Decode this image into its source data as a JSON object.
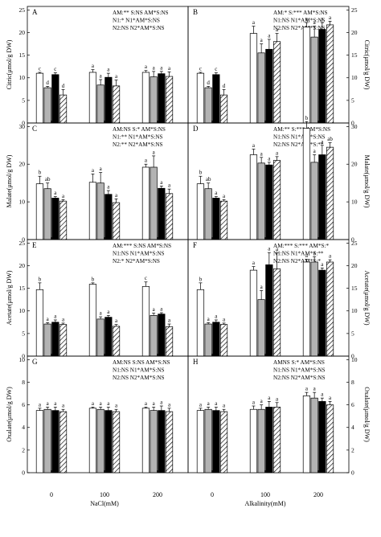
{
  "figure": {
    "xaxis_left_title": "NaCl(mM)",
    "xaxis_right_title": "Alkalinity(mM)",
    "group_labels": [
      "0",
      "100",
      "200"
    ]
  },
  "chart_data": [
    {
      "type": "bar",
      "panel": "A",
      "ylabel": "Citric(μmol/g DW)",
      "ylim": [
        0,
        25
      ],
      "yticks": [
        "0",
        "5",
        "10",
        "15",
        "20",
        "25"
      ],
      "categories": [
        "0",
        "100",
        "200"
      ],
      "series": [
        {
          "values": [
            11.0,
            11.2,
            11.2
          ],
          "errors": [
            0.2,
            0.6,
            0.4
          ]
        },
        {
          "values": [
            7.8,
            8.4,
            10.2
          ],
          "errors": [
            0.3,
            1.2,
            1.2
          ]
        },
        {
          "values": [
            10.7,
            10.1,
            10.9
          ],
          "errors": [
            0.4,
            0.9,
            0.5
          ]
        },
        {
          "values": [
            6.2,
            8.2,
            10.3
          ],
          "errors": [
            1.2,
            1.3,
            1.0
          ]
        }
      ],
      "letters": [
        [
          "c",
          "d",
          "c",
          "d"
        ],
        [
          "a",
          "a",
          "a",
          "a"
        ],
        [
          "a",
          "a",
          "a",
          "a"
        ]
      ],
      "stats": [
        "AM:**  S:NS      AM*S:NS",
        "N1:*       N1*AM*S:NS",
        "N2:NS     N2*AM*S:NS"
      ]
    },
    {
      "type": "bar",
      "panel": "B",
      "ylabel": "Citric(μmol/g DW)",
      "ylim": [
        0,
        25
      ],
      "yticks": [
        "0",
        "5",
        "10",
        "15",
        "20",
        "25"
      ],
      "categories": [
        "0",
        "100",
        "200"
      ],
      "series": [
        {
          "values": [
            11.0,
            19.8,
            21.2
          ],
          "errors": [
            0.2,
            1.6,
            1.0
          ]
        },
        {
          "values": [
            7.8,
            15.5,
            19.0
          ],
          "errors": [
            0.3,
            2.0,
            2.4
          ]
        },
        {
          "values": [
            10.7,
            16.3,
            20.7
          ],
          "errors": [
            0.4,
            2.2,
            1.5
          ]
        },
        {
          "values": [
            6.2,
            18.0,
            21.7
          ],
          "errors": [
            1.2,
            1.8,
            0.8
          ]
        }
      ],
      "letters": [
        [
          "c",
          "d",
          "c",
          "d"
        ],
        [
          "a",
          "a",
          "a",
          "a"
        ],
        [
          "a",
          "a",
          "a",
          "a"
        ]
      ],
      "stats": [
        "AM:*    S:***  AM*S:NS",
        "N1:NS   N1*AM*S:NS",
        "N2:NS   N2*AM*S:NS"
      ]
    },
    {
      "type": "bar",
      "panel": "C",
      "ylabel": "Malate(μmol/g DW)",
      "ylim": [
        0,
        30
      ],
      "yticks": [
        "0",
        "10",
        "20",
        "30"
      ],
      "categories": [
        "0",
        "100",
        "200"
      ],
      "series": [
        {
          "values": [
            14.8,
            15.2,
            19.2
          ],
          "errors": [
            2.0,
            2.2,
            0.8
          ]
        },
        {
          "values": [
            13.5,
            15.0,
            19.2
          ],
          "errors": [
            1.5,
            2.8,
            3.0
          ]
        },
        {
          "values": [
            11.0,
            12.0,
            13.6
          ],
          "errors": [
            0.4,
            1.0,
            0.6
          ]
        },
        {
          "values": [
            10.2,
            9.8,
            12.2
          ],
          "errors": [
            0.4,
            1.0,
            1.2
          ]
        }
      ],
      "letters": [
        [
          "b",
          "ab",
          "a",
          "a"
        ],
        [
          "a",
          "a",
          "a",
          "a"
        ],
        [
          "a",
          "a",
          "a",
          "a"
        ]
      ],
      "stats": [
        "AM:NS  S:*     AM*S:NS",
        "N1:**       N1*AM*S:NS",
        "N2:**       N2*AM*S:NS"
      ]
    },
    {
      "type": "bar",
      "panel": "D",
      "ylabel": "Malate(μmol/g DW)",
      "ylim": [
        0,
        30
      ],
      "yticks": [
        "0",
        "10",
        "20",
        "30"
      ],
      "categories": [
        "0",
        "100",
        "200"
      ],
      "series": [
        {
          "values": [
            14.8,
            22.5,
            29.5
          ],
          "errors": [
            2.0,
            1.5,
            1.8
          ]
        },
        {
          "values": [
            13.5,
            20.3,
            20.5
          ],
          "errors": [
            1.5,
            1.5,
            2.0
          ]
        },
        {
          "values": [
            11.0,
            19.8,
            22.5
          ],
          "errors": [
            0.4,
            0.7,
            2.5
          ]
        },
        {
          "values": [
            10.2,
            21.0,
            24.5
          ],
          "errors": [
            0.4,
            1.0,
            1.2
          ]
        }
      ],
      "letters": [
        [
          "b",
          "ab",
          "a",
          "a"
        ],
        [
          "a",
          "a",
          "a",
          "a"
        ],
        [
          "b",
          "a",
          "a",
          "ab"
        ]
      ],
      "stats": [
        "AM:**    S:***   AM*S:NS",
        "N1:NS     N1*AM*S:NS",
        "N2:NS     N2*AM*S:**"
      ]
    },
    {
      "type": "bar",
      "panel": "E",
      "ylabel": "Acetate(μmol/g DW)",
      "ylim": [
        0,
        25
      ],
      "yticks": [
        "0",
        "5",
        "10",
        "15",
        "20",
        "25"
      ],
      "categories": [
        "0",
        "100",
        "200"
      ],
      "series": [
        {
          "values": [
            14.7,
            15.9,
            15.4
          ],
          "errors": [
            1.5,
            0.3,
            1.0
          ]
        },
        {
          "values": [
            7.1,
            8.2,
            9.0
          ],
          "errors": [
            0.3,
            0.5,
            0.5
          ]
        },
        {
          "values": [
            7.5,
            8.6,
            9.3
          ],
          "errors": [
            0.5,
            0.4,
            0.3
          ]
        },
        {
          "values": [
            7.0,
            6.6,
            6.5
          ],
          "errors": [
            0.3,
            0.4,
            0.6
          ]
        }
      ],
      "letters": [
        [
          "b",
          "a",
          "a",
          "a"
        ],
        [
          "b",
          "a",
          "a",
          "a"
        ],
        [
          "c",
          "a",
          "a",
          "a"
        ]
      ],
      "stats": [
        "AM:***  S:NS      AM*S:NS",
        "N1:NS       N1*AM*S:NS",
        "N2:*          N2*AM*S:NS"
      ]
    },
    {
      "type": "bar",
      "panel": "F",
      "ylabel": "Acetate(μmol/g DW)",
      "ylim": [
        0,
        25
      ],
      "yticks": [
        "0",
        "5",
        "10",
        "15",
        "20",
        "25"
      ],
      "categories": [
        "0",
        "100",
        "200"
      ],
      "series": [
        {
          "values": [
            14.7,
            19.0,
            20.8
          ],
          "errors": [
            1.5,
            0.8,
            0.6
          ]
        },
        {
          "values": [
            7.1,
            12.5,
            20.8
          ],
          "errors": [
            0.3,
            2.0,
            1.2
          ]
        },
        {
          "values": [
            7.5,
            20.2,
            19.0
          ],
          "errors": [
            0.5,
            2.7,
            0.5
          ]
        },
        {
          "values": [
            7.0,
            19.3,
            20.8
          ],
          "errors": [
            0.3,
            3.5,
            0.5
          ]
        }
      ],
      "letters": [
        [
          "b",
          "a",
          "a",
          "a"
        ],
        [
          "a",
          "a",
          "a",
          "a"
        ],
        [
          "a",
          "a",
          "a",
          "a"
        ]
      ],
      "stats": [
        "AM:***  S:***   AM*S:*",
        "N1:NS    N1*AM*S:**",
        "N2:NS    N2*AM*S:*"
      ]
    },
    {
      "type": "bar",
      "panel": "G",
      "ylabel": "Oxalate(μmol/g DW)",
      "ylim": [
        0,
        10
      ],
      "yticks": [
        "0",
        "2",
        "4",
        "6",
        "8",
        "10"
      ],
      "categories": [
        "0",
        "100",
        "200"
      ],
      "series": [
        {
          "values": [
            5.5,
            5.7,
            5.7
          ],
          "errors": [
            0.2,
            0.1,
            0.1
          ]
        },
        {
          "values": [
            5.6,
            5.6,
            5.5
          ],
          "errors": [
            0.2,
            0.2,
            0.3
          ]
        },
        {
          "values": [
            5.5,
            5.5,
            5.5
          ],
          "errors": [
            0.3,
            0.3,
            0.4
          ]
        },
        {
          "values": [
            5.4,
            5.4,
            5.4
          ],
          "errors": [
            0.2,
            0.2,
            0.3
          ]
        }
      ],
      "letters": [
        [
          "a",
          "a",
          "a",
          "a"
        ],
        [
          "a",
          "a",
          "a",
          "a"
        ],
        [
          "a",
          "a",
          "a",
          "a"
        ]
      ],
      "stats": [
        "AM:NS   S:NS      AM*S:NS",
        "N1:NS    N1*AM*S:NS",
        "N2:NS    N2*AM*S:NS"
      ]
    },
    {
      "type": "bar",
      "panel": "H",
      "ylabel": "Oxalate(μmol/g DW)",
      "ylim": [
        0,
        10
      ],
      "yticks": [
        "0",
        "2",
        "4",
        "6",
        "8",
        "10"
      ],
      "categories": [
        "0",
        "100",
        "200"
      ],
      "series": [
        {
          "values": [
            5.5,
            5.6,
            6.8
          ],
          "errors": [
            0.2,
            0.3,
            0.3
          ]
        },
        {
          "values": [
            5.6,
            5.6,
            6.6
          ],
          "errors": [
            0.2,
            0.4,
            0.5
          ]
        },
        {
          "values": [
            5.5,
            5.8,
            6.3
          ],
          "errors": [
            0.3,
            0.5,
            0.3
          ]
        },
        {
          "values": [
            5.4,
            5.8,
            6.0
          ],
          "errors": [
            0.2,
            0.4,
            0.3
          ]
        }
      ],
      "letters": [
        [
          "a",
          "a",
          "a",
          "a"
        ],
        [
          "a",
          "a",
          "a",
          "a"
        ],
        [
          "a",
          "a",
          "a",
          "a"
        ]
      ],
      "stats": [
        "AMNS         S:*      AM*S:NS",
        "N1:NS          N1*AM*S:NS",
        "N2:NS          N2*AM*S:NS"
      ]
    }
  ]
}
